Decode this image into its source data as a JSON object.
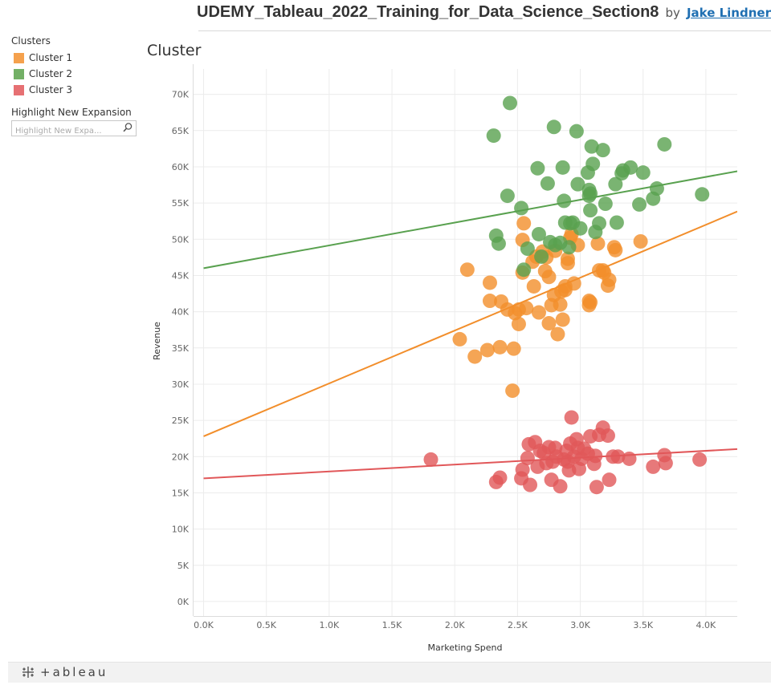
{
  "header": {
    "workbook_title": "UDEMY_Tableau_2022_Training_for_Data_Science_Section8",
    "by": "by",
    "author": "Jake Lindner"
  },
  "legend": {
    "title": "Clusters",
    "items": [
      {
        "label": "Cluster 1",
        "color": "#f28e2b"
      },
      {
        "label": "Cluster 2",
        "color": "#59a14f"
      },
      {
        "label": "Cluster 3",
        "color": "#e15759"
      }
    ]
  },
  "highlight": {
    "title": "Highlight New Expansion",
    "placeholder": "Highlight New Expa..."
  },
  "footer": {
    "logo_text": "+ableau",
    "logo_icon": "tableau-cross-icon"
  },
  "chart_data": {
    "type": "scatter",
    "title": "Cluster",
    "xlabel": "Marketing Spend",
    "ylabel": "Revenue",
    "xlim": [
      -0.08,
      4.25
    ],
    "ylim": [
      -2000,
      73500
    ],
    "x_ticks": [
      0,
      0.5,
      1,
      1.5,
      2,
      2.5,
      3,
      3.5,
      4
    ],
    "x_tick_labels": [
      "0.0K",
      "0.5K",
      "1.0K",
      "1.5K",
      "2.0K",
      "2.5K",
      "3.0K",
      "3.5K",
      "4.0K"
    ],
    "y_ticks": [
      0,
      5000,
      10000,
      15000,
      20000,
      25000,
      30000,
      35000,
      40000,
      45000,
      50000,
      55000,
      60000,
      65000,
      70000
    ],
    "y_tick_labels": [
      "0K",
      "5K",
      "10K",
      "15K",
      "20K",
      "25K",
      "30K",
      "35K",
      "40K",
      "45K",
      "50K",
      "55K",
      "60K",
      "65K",
      "70K"
    ],
    "grid": true,
    "marker_opacity": 0.8,
    "series": [
      {
        "name": "Cluster 1",
        "color": "#f28e2b",
        "trend": {
          "intercept": 22800,
          "slope": 7300
        },
        "points": [
          [
            2.04,
            36200
          ],
          [
            2.1,
            45800
          ],
          [
            2.16,
            33800
          ],
          [
            2.26,
            34700
          ],
          [
            2.28,
            44000
          ],
          [
            2.28,
            41500
          ],
          [
            2.36,
            35100
          ],
          [
            2.37,
            41400
          ],
          [
            2.42,
            40300
          ],
          [
            2.46,
            29100
          ],
          [
            2.47,
            34900
          ],
          [
            2.48,
            39800
          ],
          [
            2.51,
            38300
          ],
          [
            2.51,
            40300
          ],
          [
            2.54,
            45400
          ],
          [
            2.54,
            49900
          ],
          [
            2.55,
            52200
          ],
          [
            2.57,
            40500
          ],
          [
            2.62,
            46900
          ],
          [
            2.63,
            43500
          ],
          [
            2.65,
            47600
          ],
          [
            2.67,
            39900
          ],
          [
            2.7,
            48300
          ],
          [
            2.72,
            45600
          ],
          [
            2.73,
            47500
          ],
          [
            2.75,
            44800
          ],
          [
            2.75,
            38400
          ],
          [
            2.77,
            40900
          ],
          [
            2.79,
            42300
          ],
          [
            2.8,
            48400
          ],
          [
            2.82,
            36900
          ],
          [
            2.84,
            41000
          ],
          [
            2.85,
            42800
          ],
          [
            2.86,
            38900
          ],
          [
            2.88,
            43500
          ],
          [
            2.9,
            47300
          ],
          [
            2.9,
            46700
          ],
          [
            2.92,
            50200
          ],
          [
            2.95,
            43900
          ],
          [
            2.98,
            49200
          ],
          [
            3.07,
            41500
          ],
          [
            3.07,
            40900
          ],
          [
            3.08,
            41300
          ],
          [
            3.14,
            49400
          ],
          [
            3.15,
            45700
          ],
          [
            3.18,
            45700
          ],
          [
            3.19,
            45400
          ],
          [
            3.22,
            43600
          ],
          [
            3.23,
            44400
          ],
          [
            3.27,
            48900
          ],
          [
            3.28,
            48500
          ],
          [
            3.48,
            49700
          ],
          [
            2.88,
            43000
          ],
          [
            2.93,
            50700
          ]
        ]
      },
      {
        "name": "Cluster 2",
        "color": "#59a14f",
        "trend": {
          "intercept": 46000,
          "slope": 3150
        },
        "points": [
          [
            2.31,
            64300
          ],
          [
            2.33,
            50500
          ],
          [
            2.35,
            49400
          ],
          [
            2.42,
            56000
          ],
          [
            2.44,
            68800
          ],
          [
            2.53,
            54300
          ],
          [
            2.55,
            45800
          ],
          [
            2.58,
            48700
          ],
          [
            2.66,
            59800
          ],
          [
            2.67,
            50700
          ],
          [
            2.69,
            47600
          ],
          [
            2.74,
            57700
          ],
          [
            2.76,
            49600
          ],
          [
            2.79,
            65500
          ],
          [
            2.8,
            49200
          ],
          [
            2.84,
            49500
          ],
          [
            2.86,
            59900
          ],
          [
            2.87,
            55300
          ],
          [
            2.88,
            52300
          ],
          [
            2.91,
            48900
          ],
          [
            2.92,
            52200
          ],
          [
            2.94,
            52300
          ],
          [
            2.97,
            64900
          ],
          [
            2.98,
            57600
          ],
          [
            3.0,
            51500
          ],
          [
            3.06,
            59200
          ],
          [
            3.07,
            56800
          ],
          [
            3.08,
            56300
          ],
          [
            3.08,
            54000
          ],
          [
            3.09,
            62800
          ],
          [
            3.1,
            60400
          ],
          [
            3.12,
            51000
          ],
          [
            3.15,
            52200
          ],
          [
            3.18,
            62300
          ],
          [
            3.2,
            54900
          ],
          [
            3.28,
            57600
          ],
          [
            3.29,
            52300
          ],
          [
            3.33,
            59100
          ],
          [
            3.34,
            59500
          ],
          [
            3.4,
            59900
          ],
          [
            3.47,
            54800
          ],
          [
            3.5,
            59200
          ],
          [
            3.58,
            55600
          ],
          [
            3.61,
            57000
          ],
          [
            3.67,
            63100
          ],
          [
            3.97,
            56200
          ],
          [
            3.07,
            56000
          ]
        ]
      },
      {
        "name": "Cluster 3",
        "color": "#e15759",
        "trend": {
          "intercept": 17000,
          "slope": 950
        },
        "points": [
          [
            1.81,
            19600
          ],
          [
            2.33,
            16500
          ],
          [
            2.36,
            17100
          ],
          [
            2.53,
            17000
          ],
          [
            2.54,
            18200
          ],
          [
            2.58,
            19800
          ],
          [
            2.59,
            21700
          ],
          [
            2.6,
            16100
          ],
          [
            2.64,
            22000
          ],
          [
            2.66,
            18600
          ],
          [
            2.68,
            20800
          ],
          [
            2.71,
            20500
          ],
          [
            2.73,
            19100
          ],
          [
            2.75,
            21300
          ],
          [
            2.77,
            16800
          ],
          [
            2.78,
            19300
          ],
          [
            2.8,
            21200
          ],
          [
            2.81,
            20000
          ],
          [
            2.84,
            15900
          ],
          [
            2.87,
            19600
          ],
          [
            2.89,
            20800
          ],
          [
            2.9,
            19300
          ],
          [
            2.91,
            18100
          ],
          [
            2.92,
            21800
          ],
          [
            2.93,
            25400
          ],
          [
            2.95,
            20000
          ],
          [
            2.97,
            22400
          ],
          [
            2.98,
            21200
          ],
          [
            2.99,
            18300
          ],
          [
            3.01,
            19700
          ],
          [
            3.03,
            21100
          ],
          [
            3.06,
            20400
          ],
          [
            3.08,
            22800
          ],
          [
            3.11,
            19000
          ],
          [
            3.12,
            20100
          ],
          [
            3.13,
            15800
          ],
          [
            3.15,
            23000
          ],
          [
            3.18,
            24000
          ],
          [
            3.22,
            22900
          ],
          [
            3.23,
            16800
          ],
          [
            3.26,
            20000
          ],
          [
            3.3,
            20000
          ],
          [
            3.39,
            19700
          ],
          [
            3.58,
            18600
          ],
          [
            3.67,
            20200
          ],
          [
            3.68,
            19100
          ],
          [
            3.95,
            19600
          ]
        ]
      }
    ]
  }
}
